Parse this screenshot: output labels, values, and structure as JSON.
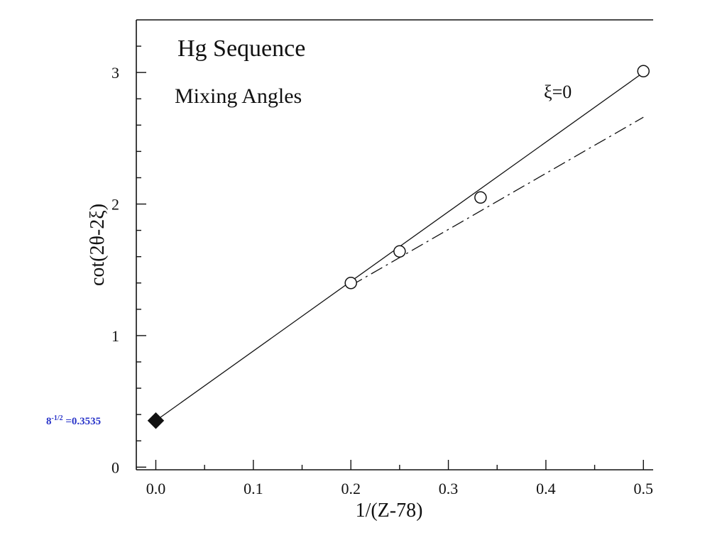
{
  "chart_data": {
    "type": "line",
    "title": "Hg Sequence",
    "subtitle": "Mixing Angles",
    "xlabel": "1/(Z-78)",
    "ylabel": "cot(2θ-2ξ)",
    "xlim": [
      -0.02,
      0.51
    ],
    "ylim": [
      -0.02,
      3.4
    ],
    "x_ticks": [
      0.0,
      0.1,
      0.2,
      0.3,
      0.4,
      0.5
    ],
    "x_tick_labels": [
      "0.0",
      "0.1",
      "0.2",
      "0.3",
      "0.4",
      "0.5"
    ],
    "y_ticks": [
      0,
      1,
      2,
      3
    ],
    "y_tick_labels": [
      "0",
      "1",
      "2",
      "3"
    ],
    "grid": false,
    "series": [
      {
        "name": "ξ=0",
        "style": "solid",
        "x": [
          0.0,
          0.5
        ],
        "y": [
          0.3535,
          3.0
        ]
      },
      {
        "style": "dash-dot",
        "x": [
          0.2,
          0.5
        ],
        "y": [
          1.38,
          2.66
        ]
      }
    ],
    "points": [
      {
        "x": 0.2,
        "y": 1.4,
        "marker": "open-circle"
      },
      {
        "x": 0.25,
        "y": 1.64,
        "marker": "open-circle"
      },
      {
        "x": 0.333,
        "y": 2.05,
        "marker": "open-circle"
      },
      {
        "x": 0.5,
        "y": 3.01,
        "marker": "open-circle"
      },
      {
        "x": 0.0,
        "y": 0.3535,
        "marker": "filled-diamond"
      }
    ],
    "annotations": {
      "series_label": "ξ=0",
      "intercept_label": "8",
      "intercept_exponent": "-1/2",
      "intercept_value": " =0.3535"
    },
    "colors": {
      "axes": "#111111",
      "intercept_label": "#2a35c9"
    }
  }
}
